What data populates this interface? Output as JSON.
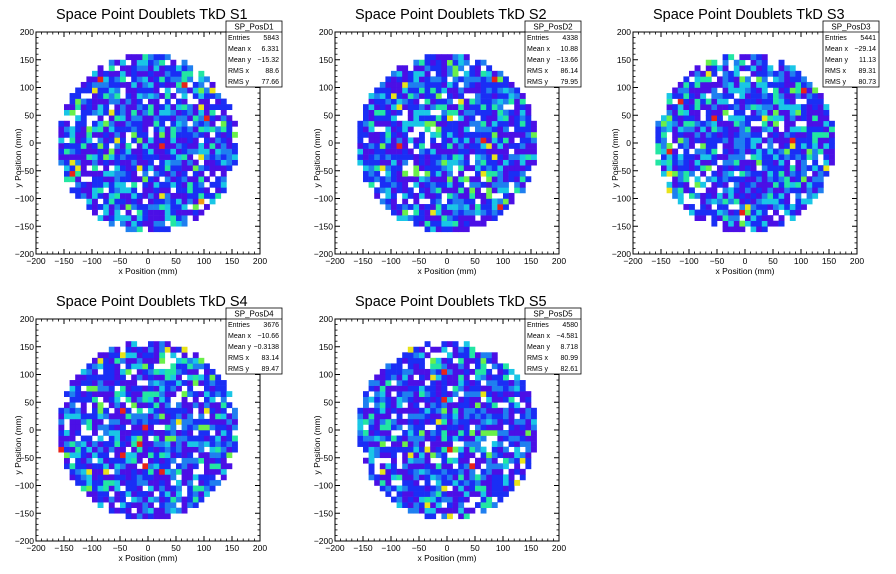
{
  "chart_data": [
    {
      "type": "heatmap",
      "title": "Space Point Doublets TkD S1",
      "xlabel": "x Position (mm)",
      "ylabel": "y Position (mm)",
      "xlim": [
        -200,
        200
      ],
      "ylim": [
        -200,
        200
      ],
      "xticks": [
        "−200",
        "−150",
        "−100",
        "−50",
        "0",
        "50",
        "100",
        "150",
        "200"
      ],
      "yticks": [
        "−200",
        "−150",
        "−100",
        "−50",
        "0",
        "50",
        "100",
        "150",
        "200"
      ],
      "fill_radius": 160,
      "stats": {
        "name": "SP_PosD1",
        "rows": [
          {
            "label": "Entries",
            "value": "5843"
          },
          {
            "label": "Mean x",
            "value": "6.331"
          },
          {
            "label": "Mean y",
            "value": "−15.32"
          },
          {
            "label": "RMS x",
            "value": "88.6"
          },
          {
            "label": "RMS y",
            "value": "77.66"
          }
        ]
      }
    },
    {
      "type": "heatmap",
      "title": "Space Point Doublets TkD S2",
      "xlabel": "x Position (mm)",
      "ylabel": "y Position (mm)",
      "xlim": [
        -200,
        200
      ],
      "ylim": [
        -200,
        200
      ],
      "xticks": [
        "−200",
        "−150",
        "−100",
        "−50",
        "0",
        "50",
        "100",
        "150",
        "200"
      ],
      "yticks": [
        "−200",
        "−150",
        "−100",
        "−50",
        "0",
        "50",
        "100",
        "150",
        "200"
      ],
      "fill_radius": 160,
      "stats": {
        "name": "SP_PosD2",
        "rows": [
          {
            "label": "Entries",
            "value": "4338"
          },
          {
            "label": "Mean x",
            "value": "10.88"
          },
          {
            "label": "Mean y",
            "value": "−13.66"
          },
          {
            "label": "RMS x",
            "value": "86.14"
          },
          {
            "label": "RMS y",
            "value": "79.95"
          }
        ]
      }
    },
    {
      "type": "heatmap",
      "title": "Space Point Doublets TkD S3",
      "xlabel": "x Position (mm)",
      "ylabel": "y Position (mm)",
      "xlim": [
        -200,
        200
      ],
      "ylim": [
        -200,
        200
      ],
      "xticks": [
        "−200",
        "−150",
        "−100",
        "−50",
        "0",
        "50",
        "100",
        "150",
        "200"
      ],
      "yticks": [
        "−200",
        "−150",
        "−100",
        "−50",
        "0",
        "50",
        "100",
        "150",
        "200"
      ],
      "fill_radius": 160,
      "stats": {
        "name": "SP_PosD3",
        "rows": [
          {
            "label": "Entries",
            "value": "5441"
          },
          {
            "label": "Mean x",
            "value": "−29.14"
          },
          {
            "label": "Mean y",
            "value": "11.13"
          },
          {
            "label": "RMS x",
            "value": "89.31"
          },
          {
            "label": "RMS y",
            "value": "80.73"
          }
        ]
      }
    },
    {
      "type": "heatmap",
      "title": "Space Point Doublets TkD S4",
      "xlabel": "x Position (mm)",
      "ylabel": "y Position (mm)",
      "xlim": [
        -200,
        200
      ],
      "ylim": [
        -200,
        200
      ],
      "xticks": [
        "−200",
        "−150",
        "−100",
        "−50",
        "0",
        "50",
        "100",
        "150",
        "200"
      ],
      "yticks": [
        "−200",
        "−150",
        "−100",
        "−50",
        "0",
        "50",
        "100",
        "150",
        "200"
      ],
      "fill_radius": 160,
      "stats": {
        "name": "SP_PosD4",
        "rows": [
          {
            "label": "Entries",
            "value": "3676"
          },
          {
            "label": "Mean x",
            "value": "−10.66"
          },
          {
            "label": "Mean y",
            "value": "−0.3138"
          },
          {
            "label": "RMS x",
            "value": "83.14"
          },
          {
            "label": "RMS y",
            "value": "89.47"
          }
        ]
      }
    },
    {
      "type": "heatmap",
      "title": "Space Point Doublets TkD S5",
      "xlabel": "x Position (mm)",
      "ylabel": "y Position (mm)",
      "xlim": [
        -200,
        200
      ],
      "ylim": [
        -200,
        200
      ],
      "xticks": [
        "−200",
        "−150",
        "−100",
        "−50",
        "0",
        "50",
        "100",
        "150",
        "200"
      ],
      "yticks": [
        "−200",
        "−150",
        "−100",
        "−50",
        "0",
        "50",
        "100",
        "150",
        "200"
      ],
      "fill_radius": 160,
      "stats": {
        "name": "SP_PosD5",
        "rows": [
          {
            "label": "Entries",
            "value": "4580"
          },
          {
            "label": "Mean x",
            "value": "−4.581"
          },
          {
            "label": "Mean y",
            "value": "8.718"
          },
          {
            "label": "RMS x",
            "value": "80.99"
          },
          {
            "label": "RMS y",
            "value": "82.61"
          }
        ]
      }
    }
  ],
  "palette": [
    "#ffffff",
    "#4b0fe6",
    "#1a2ef5",
    "#1f7ff0",
    "#19c6e6",
    "#22e6a3",
    "#6af04a",
    "#e8e31a",
    "#f59a12",
    "#e8231a"
  ]
}
